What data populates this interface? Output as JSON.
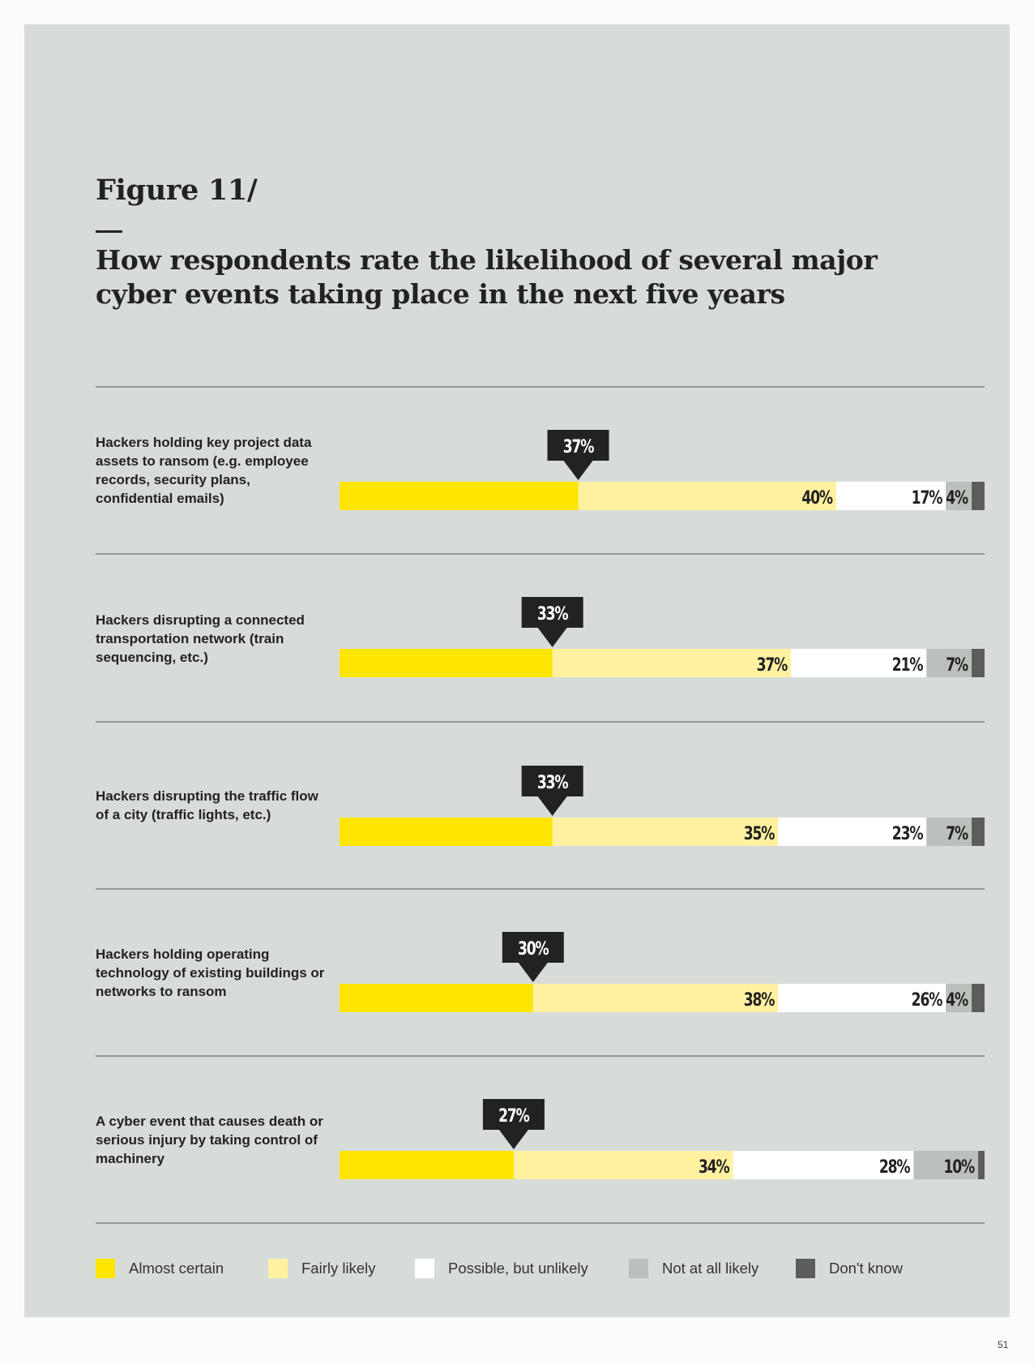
{
  "figure": {
    "label": "Figure 11/",
    "title": "How respondents rate the likelihood of several major cyber events taking place in the next five years"
  },
  "colors": {
    "panel_background": "#d8dcd9",
    "almost_certain": "#ffe600",
    "fairly_likely": "#fff1a0",
    "possible_but_unlikely": "#ffffff",
    "not_at_all_likely": "#bcc0bc",
    "dont_know": "#5c5c5c",
    "callout": "#222222",
    "rule": "#555555"
  },
  "chart_data": {
    "type": "bar",
    "orientation": "horizontal",
    "stacked": true,
    "normalized_to": 100,
    "title": "How respondents rate the likelihood of several major cyber events taking place in the next five years",
    "categories": [
      "Hackers holding key project data assets to ransom (e.g. employee records, security plans, confidential emails)",
      "Hackers disrupting a connected transportation network (train sequencing, etc.)",
      "Hackers disrupting the traffic flow of a city (traffic lights, etc.)",
      "Hackers holding operating technology of existing buildings or networks to ransom",
      "A cyber event that causes death or serious injury by taking control of machinery"
    ],
    "series": [
      {
        "name": "Almost certain",
        "values": [
          37,
          33,
          33,
          30,
          27
        ],
        "labels": [
          "37%",
          "33%",
          "33%",
          "30%",
          "27%"
        ]
      },
      {
        "name": "Fairly likely",
        "values": [
          40,
          37,
          35,
          38,
          34
        ],
        "labels": [
          "40%",
          "37%",
          "35%",
          "38%",
          "34%"
        ]
      },
      {
        "name": "Possible, but unlikely",
        "values": [
          17,
          21,
          23,
          26,
          28
        ],
        "labels": [
          "17%",
          "21%",
          "23%",
          "26%",
          "28%"
        ]
      },
      {
        "name": "Not at all likely",
        "values": [
          4,
          7,
          7,
          4,
          10
        ],
        "labels": [
          "4%",
          "7%",
          "7%",
          "4%",
          "10%"
        ]
      },
      {
        "name": "Don't know",
        "values": [
          2,
          2,
          2,
          2,
          1
        ],
        "labels": [
          "",
          "",
          "",
          "",
          ""
        ]
      }
    ],
    "legend_position": "bottom"
  },
  "page_number": "51"
}
